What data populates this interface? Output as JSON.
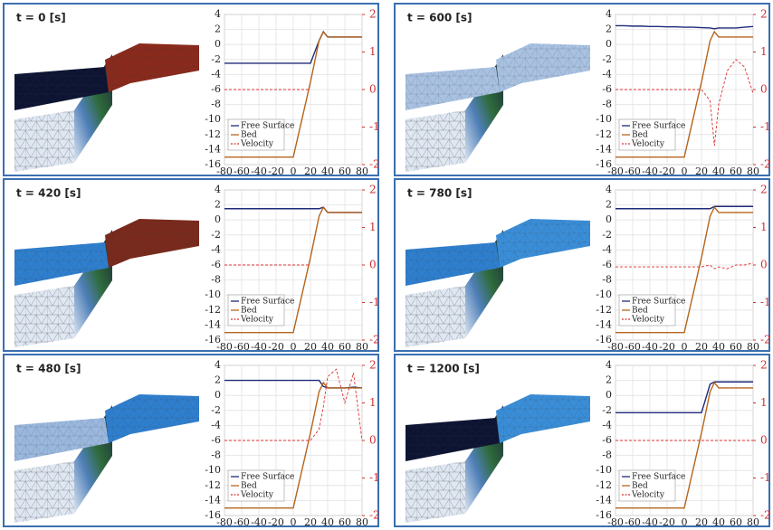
{
  "chart_data": [
    {
      "type": "line",
      "title": "t = 0 [s]",
      "x": [
        -80,
        -70,
        -60,
        -50,
        -40,
        -30,
        -20,
        -10,
        0,
        10,
        20,
        30,
        35,
        40,
        50,
        60,
        70,
        80
      ],
      "series": [
        {
          "name": "Free Surface",
          "color": "#1f2a7a",
          "values": [
            -2.5,
            -2.5,
            -2.5,
            -2.5,
            -2.5,
            -2.5,
            -2.5,
            -2.5,
            -2.5,
            -2.5,
            -2.5,
            0.5,
            1.7,
            1,
            1,
            1,
            1,
            1
          ]
        },
        {
          "name": "Bed",
          "color": "#b5651d",
          "values": [
            -15,
            -15,
            -15,
            -15,
            -15,
            -15,
            -15,
            -15,
            -15,
            -10,
            -5,
            0.5,
            1.7,
            1,
            1,
            1,
            1,
            1
          ]
        },
        {
          "name": "Velocity",
          "color": "#e03030",
          "style": "dashed",
          "axis": "y2",
          "values": [
            0,
            0,
            0,
            0,
            0,
            0,
            0,
            0,
            0,
            0,
            0,
            null,
            null,
            null,
            null,
            null,
            null,
            null
          ]
        }
      ],
      "xlim": [
        -80,
        80
      ],
      "xticks": [
        -80,
        -60,
        -40,
        -20,
        0,
        20,
        40,
        60,
        80
      ],
      "ylim": [
        -16,
        4
      ],
      "yticks": [
        -16,
        -14,
        -12,
        -10,
        -8,
        -6,
        -4,
        -2,
        0,
        2,
        4
      ],
      "y2lim": [
        -2,
        2
      ],
      "y2ticks": [
        -2,
        -1,
        0,
        1,
        2
      ],
      "grid": true,
      "legend": "lower left"
    },
    {
      "type": "line",
      "title": "t = 600 [s]",
      "x": [
        -80,
        -70,
        -60,
        -50,
        -40,
        -30,
        -20,
        -10,
        0,
        10,
        20,
        30,
        35,
        40,
        50,
        60,
        70,
        80
      ],
      "series": [
        {
          "name": "Free Surface",
          "color": "#1f2a7a",
          "values": [
            2.5,
            2.5,
            2.45,
            2.45,
            2.4,
            2.4,
            2.35,
            2.35,
            2.3,
            2.3,
            2.25,
            2.2,
            2.1,
            2.2,
            2.2,
            2.2,
            2.3,
            2.4
          ]
        },
        {
          "name": "Bed",
          "color": "#b5651d",
          "values": [
            -15,
            -15,
            -15,
            -15,
            -15,
            -15,
            -15,
            -15,
            -15,
            -10,
            -5,
            0.5,
            1.7,
            1,
            1,
            1,
            1,
            1
          ]
        },
        {
          "name": "Velocity",
          "color": "#e03030",
          "style": "dashed",
          "axis": "y2",
          "values": [
            0,
            0,
            0,
            0,
            0,
            0,
            0,
            0,
            0,
            0,
            0,
            -0.3,
            -1.5,
            -0.4,
            0.5,
            0.8,
            0.6,
            -0.1
          ]
        }
      ],
      "xlim": [
        -80,
        80
      ],
      "xticks": [
        -80,
        -60,
        -40,
        -20,
        0,
        20,
        40,
        60,
        80
      ],
      "ylim": [
        -16,
        4
      ],
      "yticks": [
        -16,
        -14,
        -12,
        -10,
        -8,
        -6,
        -4,
        -2,
        0,
        2,
        4
      ],
      "y2lim": [
        -2,
        2
      ],
      "y2ticks": [
        -2,
        -1,
        0,
        1,
        2
      ],
      "grid": true,
      "legend": "lower left"
    },
    {
      "type": "line",
      "title": "t = 420 [s]",
      "x": [
        -80,
        -70,
        -60,
        -50,
        -40,
        -30,
        -20,
        -10,
        0,
        10,
        20,
        30,
        35,
        40,
        50,
        60,
        70,
        80
      ],
      "series": [
        {
          "name": "Free Surface",
          "color": "#1f2a7a",
          "values": [
            1.5,
            1.5,
            1.5,
            1.5,
            1.5,
            1.5,
            1.5,
            1.5,
            1.5,
            1.5,
            1.5,
            1.5,
            1.7,
            1,
            1,
            1,
            1,
            1
          ]
        },
        {
          "name": "Bed",
          "color": "#b5651d",
          "values": [
            -15,
            -15,
            -15,
            -15,
            -15,
            -15,
            -15,
            -15,
            -15,
            -10,
            -5,
            0.5,
            1.7,
            1,
            1,
            1,
            1,
            1
          ]
        },
        {
          "name": "Velocity",
          "color": "#e03030",
          "style": "dashed",
          "axis": "y2",
          "values": [
            0,
            0,
            0,
            0,
            0,
            0,
            0,
            0,
            0,
            0,
            0,
            null,
            null,
            null,
            null,
            null,
            null,
            null
          ]
        }
      ],
      "xlim": [
        -80,
        80
      ],
      "xticks": [
        -80,
        -60,
        -40,
        -20,
        0,
        20,
        40,
        60,
        80
      ],
      "ylim": [
        -16,
        4
      ],
      "yticks": [
        -16,
        -14,
        -12,
        -10,
        -8,
        -6,
        -4,
        -2,
        0,
        2,
        4
      ],
      "y2lim": [
        -2,
        2
      ],
      "y2ticks": [
        -2,
        -1,
        0,
        1,
        2
      ],
      "grid": true,
      "legend": "lower left"
    },
    {
      "type": "line",
      "title": "t = 780 [s]",
      "x": [
        -80,
        -70,
        -60,
        -50,
        -40,
        -30,
        -20,
        -10,
        0,
        10,
        20,
        30,
        35,
        40,
        50,
        60,
        70,
        80
      ],
      "series": [
        {
          "name": "Free Surface",
          "color": "#1f2a7a",
          "values": [
            1.5,
            1.5,
            1.5,
            1.5,
            1.5,
            1.5,
            1.5,
            1.5,
            1.5,
            1.5,
            1.5,
            1.5,
            1.8,
            1.8,
            1.8,
            1.8,
            1.8,
            1.8
          ]
        },
        {
          "name": "Bed",
          "color": "#b5651d",
          "values": [
            -15,
            -15,
            -15,
            -15,
            -15,
            -15,
            -15,
            -15,
            -15,
            -10,
            -5,
            0.5,
            1.7,
            1,
            1,
            1,
            1,
            1
          ]
        },
        {
          "name": "Velocity",
          "color": "#e03030",
          "style": "dashed",
          "axis": "y2",
          "values": [
            -0.05,
            -0.05,
            -0.05,
            -0.05,
            -0.05,
            -0.05,
            -0.05,
            -0.05,
            -0.05,
            -0.05,
            -0.05,
            0,
            -0.1,
            -0.05,
            -0.1,
            0,
            0,
            0.05
          ]
        }
      ],
      "xlim": [
        -80,
        80
      ],
      "xticks": [
        -80,
        -60,
        -40,
        -20,
        0,
        20,
        40,
        60,
        80
      ],
      "ylim": [
        -16,
        4
      ],
      "yticks": [
        -16,
        -14,
        -12,
        -10,
        -8,
        -6,
        -4,
        -2,
        0,
        2,
        4
      ],
      "y2lim": [
        -2,
        2
      ],
      "y2ticks": [
        -2,
        -1,
        0,
        1,
        2
      ],
      "grid": true,
      "legend": "lower left"
    },
    {
      "type": "line",
      "title": "t = 480 [s]",
      "x": [
        -80,
        -70,
        -60,
        -50,
        -40,
        -30,
        -20,
        -10,
        0,
        10,
        20,
        30,
        35,
        40,
        50,
        60,
        70,
        80
      ],
      "series": [
        {
          "name": "Free Surface",
          "color": "#1f2a7a",
          "values": [
            2,
            2,
            2,
            2,
            2,
            2,
            2,
            2,
            2,
            2,
            2,
            2,
            1.2,
            1,
            1,
            1,
            1.1,
            1
          ]
        },
        {
          "name": "Bed",
          "color": "#b5651d",
          "values": [
            -15,
            -15,
            -15,
            -15,
            -15,
            -15,
            -15,
            -15,
            -15,
            -10,
            -5,
            0.5,
            1.7,
            1,
            1,
            1,
            1,
            1
          ]
        },
        {
          "name": "Velocity",
          "color": "#e03030",
          "style": "dashed",
          "axis": "y2",
          "values": [
            0,
            0,
            0,
            0,
            0,
            0,
            0,
            0,
            0,
            0,
            0,
            0.3,
            0.9,
            1.7,
            1.9,
            1,
            1.8,
            0
          ]
        }
      ],
      "xlim": [
        -80,
        80
      ],
      "xticks": [
        -80,
        -60,
        -40,
        -20,
        0,
        20,
        40,
        60,
        80
      ],
      "ylim": [
        -16,
        4
      ],
      "yticks": [
        -16,
        -14,
        -12,
        -10,
        -8,
        -6,
        -4,
        -2,
        0,
        2,
        4
      ],
      "y2lim": [
        -2,
        2
      ],
      "y2ticks": [
        -2,
        -1,
        0,
        1,
        2
      ],
      "grid": true,
      "legend": "lower left"
    },
    {
      "type": "line",
      "title": "t = 1200 [s]",
      "x": [
        -80,
        -70,
        -60,
        -50,
        -40,
        -30,
        -20,
        -10,
        0,
        10,
        20,
        30,
        35,
        40,
        50,
        60,
        70,
        80
      ],
      "series": [
        {
          "name": "Free Surface",
          "color": "#1f2a7a",
          "values": [
            -2.3,
            -2.3,
            -2.3,
            -2.3,
            -2.3,
            -2.3,
            -2.3,
            -2.3,
            -2.3,
            -2.3,
            -2.3,
            1.5,
            1.8,
            1.8,
            1.8,
            1.8,
            1.8,
            1.8
          ]
        },
        {
          "name": "Bed",
          "color": "#b5651d",
          "values": [
            -15,
            -15,
            -15,
            -15,
            -15,
            -15,
            -15,
            -15,
            -15,
            -10,
            -5,
            0.5,
            1.7,
            1,
            1,
            1,
            1,
            1
          ]
        },
        {
          "name": "Velocity",
          "color": "#e03030",
          "style": "dashed",
          "axis": "y2",
          "values": [
            0,
            0,
            0,
            0,
            0,
            0,
            0,
            0,
            0,
            0,
            0,
            0,
            0,
            0,
            0,
            0,
            0,
            0
          ]
        }
      ],
      "xlim": [
        -80,
        80
      ],
      "xticks": [
        -80,
        -60,
        -40,
        -20,
        0,
        20,
        40,
        60,
        80
      ],
      "ylim": [
        -16,
        4
      ],
      "yticks": [
        -16,
        -14,
        -12,
        -10,
        -8,
        -6,
        -4,
        -2,
        0,
        2,
        4
      ],
      "y2lim": [
        -2,
        2
      ],
      "y2ticks": [
        -2,
        -1,
        0,
        1,
        2
      ],
      "grid": true,
      "legend": "lower left"
    }
  ]
}
